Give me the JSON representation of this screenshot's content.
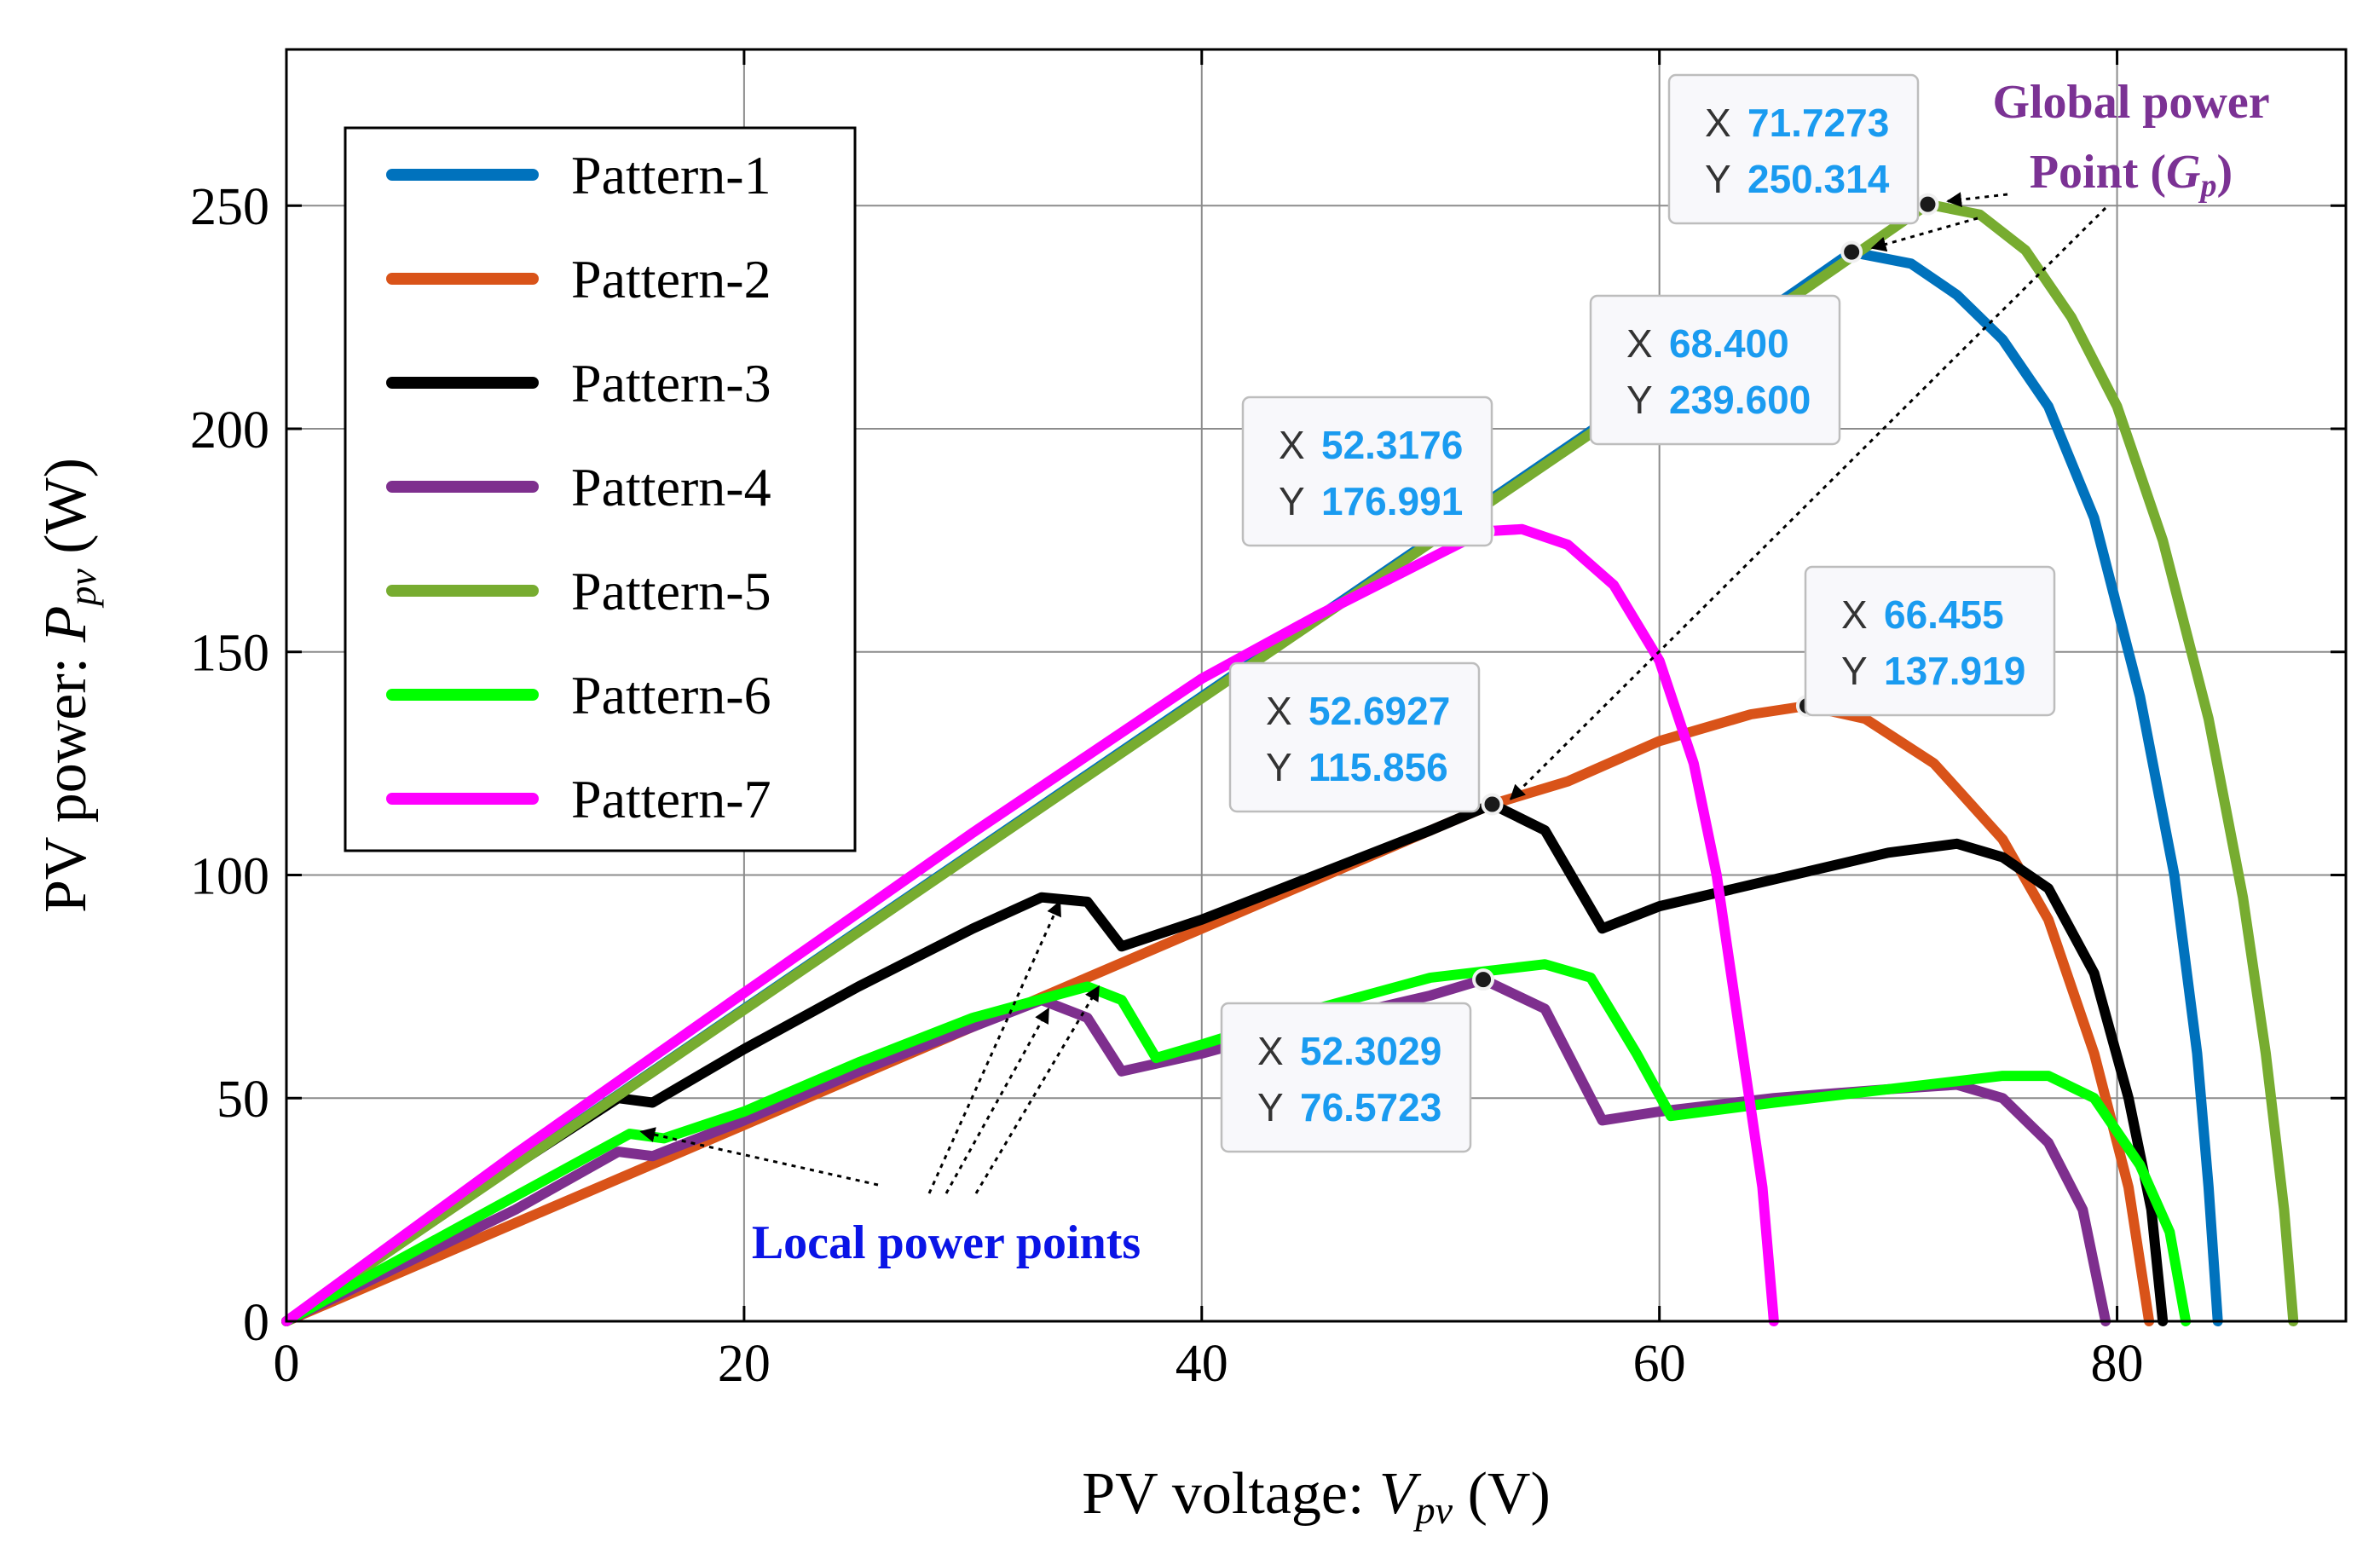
{
  "chart_data": {
    "type": "line",
    "xlabel_prefix": "PV voltage: ",
    "xlabel_var": "V",
    "xlabel_sub": "pv",
    "xlabel_unit": " (V)",
    "ylabel_prefix": "PV power: ",
    "ylabel_var": "P",
    "ylabel_sub": "pv",
    "ylabel_unit": " (W)",
    "xlim": [
      0,
      90
    ],
    "ylim": [
      0,
      285
    ],
    "xticks": [
      0,
      20,
      40,
      60,
      80
    ],
    "yticks": [
      0,
      50,
      100,
      150,
      200,
      250
    ],
    "xtick_labels": [
      "0",
      "20",
      "40",
      "60",
      "80"
    ],
    "ytick_labels": [
      "0",
      "50",
      "100",
      "150",
      "200",
      "250"
    ],
    "grid": true,
    "legend_position": "top-left",
    "series": [
      {
        "name": "Pattern-1",
        "color": "#0072bd",
        "points": [
          [
            0,
            0
          ],
          [
            10,
            35
          ],
          [
            20,
            70
          ],
          [
            30,
            105
          ],
          [
            40,
            140
          ],
          [
            50,
            175
          ],
          [
            60,
            210
          ],
          [
            66,
            231
          ],
          [
            68.4,
            239.6
          ],
          [
            71,
            237
          ],
          [
            73,
            230
          ],
          [
            75,
            220
          ],
          [
            77,
            205
          ],
          [
            79,
            180
          ],
          [
            81,
            140
          ],
          [
            82.5,
            100
          ],
          [
            83.5,
            60
          ],
          [
            84,
            30
          ],
          [
            84.4,
            0
          ]
        ]
      },
      {
        "name": "Pattern-2",
        "color": "#d95319",
        "points": [
          [
            0,
            0
          ],
          [
            10,
            22
          ],
          [
            20,
            44
          ],
          [
            30,
            66
          ],
          [
            40,
            88
          ],
          [
            50,
            110
          ],
          [
            52.69,
            115.86
          ],
          [
            56,
            121
          ],
          [
            60,
            130
          ],
          [
            64,
            136
          ],
          [
            66.455,
            137.919
          ],
          [
            69,
            135
          ],
          [
            72,
            125
          ],
          [
            75,
            108
          ],
          [
            77,
            90
          ],
          [
            79,
            60
          ],
          [
            80.5,
            30
          ],
          [
            81.4,
            0
          ]
        ]
      },
      {
        "name": "Pattern-3",
        "color": "#000000",
        "points": [
          [
            0,
            0
          ],
          [
            10,
            35
          ],
          [
            14.5,
            50
          ],
          [
            16,
            49
          ],
          [
            20,
            61
          ],
          [
            25,
            75
          ],
          [
            30,
            88
          ],
          [
            33,
            95
          ],
          [
            35,
            94
          ],
          [
            36.5,
            84
          ],
          [
            40,
            90
          ],
          [
            45,
            100
          ],
          [
            50,
            110
          ],
          [
            52.69,
            115.86
          ],
          [
            55,
            110
          ],
          [
            57.5,
            88
          ],
          [
            60,
            93
          ],
          [
            65,
            99
          ],
          [
            70,
            105
          ],
          [
            73,
            107
          ],
          [
            75,
            104
          ],
          [
            77,
            97
          ],
          [
            79,
            78
          ],
          [
            80.5,
            50
          ],
          [
            81.5,
            25
          ],
          [
            82,
            0
          ]
        ]
      },
      {
        "name": "Pattern-4",
        "color": "#7e2f8e",
        "points": [
          [
            0,
            0
          ],
          [
            10,
            25
          ],
          [
            14.5,
            38
          ],
          [
            16,
            37
          ],
          [
            20,
            45
          ],
          [
            25,
            56
          ],
          [
            30,
            66
          ],
          [
            33,
            72
          ],
          [
            35,
            68
          ],
          [
            36.5,
            56
          ],
          [
            40,
            60
          ],
          [
            45,
            67
          ],
          [
            50,
            73
          ],
          [
            52.3,
            76.57
          ],
          [
            55,
            70
          ],
          [
            57.5,
            45
          ],
          [
            60,
            47
          ],
          [
            65,
            50
          ],
          [
            70,
            52
          ],
          [
            73,
            53
          ],
          [
            75,
            50
          ],
          [
            77,
            40
          ],
          [
            78.5,
            25
          ],
          [
            79.5,
            0
          ]
        ]
      },
      {
        "name": "Pattern-5",
        "color": "#77ac30",
        "points": [
          [
            0,
            0
          ],
          [
            10,
            34.9
          ],
          [
            20,
            69.8
          ],
          [
            30,
            104.7
          ],
          [
            40,
            139.6
          ],
          [
            50,
            174.5
          ],
          [
            60,
            209.4
          ],
          [
            66,
            230
          ],
          [
            71.73,
            250.31
          ],
          [
            74,
            248
          ],
          [
            76,
            240
          ],
          [
            78,
            225
          ],
          [
            80,
            205
          ],
          [
            82,
            175
          ],
          [
            84,
            135
          ],
          [
            85.5,
            95
          ],
          [
            86.5,
            60
          ],
          [
            87.3,
            25
          ],
          [
            87.7,
            0
          ]
        ]
      },
      {
        "name": "Pattern-6",
        "color": "#00ff00",
        "points": [
          [
            0,
            0
          ],
          [
            10,
            28
          ],
          [
            15,
            42
          ],
          [
            16.5,
            41
          ],
          [
            20,
            47
          ],
          [
            25,
            58
          ],
          [
            30,
            68
          ],
          [
            35,
            75
          ],
          [
            36.5,
            72
          ],
          [
            38,
            59
          ],
          [
            40,
            62
          ],
          [
            45,
            70
          ],
          [
            50,
            77
          ],
          [
            55,
            80
          ],
          [
            57,
            77
          ],
          [
            59,
            60
          ],
          [
            60.5,
            46
          ],
          [
            65,
            49
          ],
          [
            70,
            52
          ],
          [
            75,
            55
          ],
          [
            77,
            55
          ],
          [
            79,
            50
          ],
          [
            81,
            35
          ],
          [
            82.3,
            20
          ],
          [
            83,
            0
          ]
        ]
      },
      {
        "name": "Pattern-7",
        "color": "#ff00ff",
        "points": [
          [
            0,
            0
          ],
          [
            10,
            37.5
          ],
          [
            20,
            73.6
          ],
          [
            30,
            109.5
          ],
          [
            40,
            144
          ],
          [
            45,
            158
          ],
          [
            50,
            171
          ],
          [
            52.32,
            176.99
          ],
          [
            54,
            177.5
          ],
          [
            56,
            174
          ],
          [
            58,
            165
          ],
          [
            60,
            148
          ],
          [
            61.5,
            125
          ],
          [
            62.5,
            100
          ],
          [
            63.5,
            65
          ],
          [
            64.5,
            30
          ],
          [
            65,
            0
          ]
        ]
      }
    ],
    "datatips": [
      {
        "x": "71.7273",
        "y": "250.314"
      },
      {
        "x": "68.400",
        "y": "239.600"
      },
      {
        "x": "52.3176",
        "y": "176.991"
      },
      {
        "x": "66.455",
        "y": "137.919"
      },
      {
        "x": "52.6927",
        "y": "115.856"
      },
      {
        "x": "52.3029",
        "y": "76.5723"
      }
    ],
    "datatip_keys": {
      "x": "X",
      "y": "Y"
    },
    "annotations": {
      "global_line1": "Global power",
      "global_line2_prefix": "Point (",
      "global_line2_var": "G",
      "global_line2_sub": "p",
      "global_line2_suffix": ")",
      "local": "Local power points"
    }
  }
}
